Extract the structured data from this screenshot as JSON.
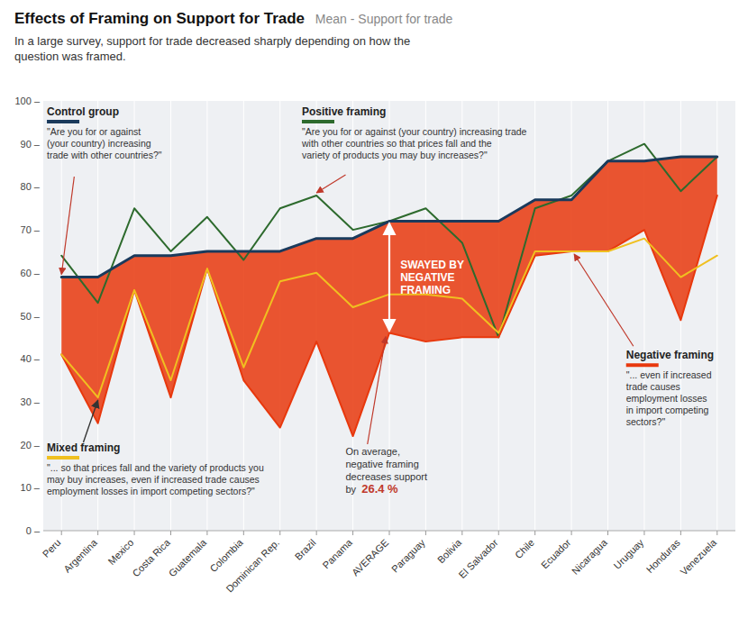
{
  "chart_data": {
    "type": "line",
    "title": "Effects of Framing on Support for Trade",
    "subtitle": "  Mean - Support for trade",
    "annotations": [
      "In a large survey, support for trade decreased sharply depending on how the\nquestion was framed.",
      "\"Are you for or against\n(your country) increasing\ntrade with other countries?\"",
      "\"Are you for or against (your country) increasing trade\nwith other countries so that prices fall and the\nvariety of products you may buy increases?\"",
      "\"... so that prices fall and the variety of products you\nmay buy increases, even if increased trade causes\nemployment losses in import competing sectors?\"",
      "SWAYED BY\nNEGATIVE\nFRAMING",
      "On average,\nnegative framing\ndecreases support\nby ",
      "26.4 %",
      "\"... even if increased\ntrade causes\nemployment losses\nin import competing\nsectors?\""
    ],
    "categories": [
      "Peru",
      "Argentina",
      "Mexico",
      "Costa Rica",
      "Guatemala",
      "Colombia",
      "Dominican Rep.",
      "Brazil",
      "Panama",
      "AVERAGE",
      "Paraguay",
      "Bolivia",
      "El Salvador",
      "Chile",
      "Ecuador",
      "Nicaragua",
      "Uruguay",
      "Honduras",
      "Venezuela"
    ],
    "series": [
      {
        "name": "Control group",
        "color": "#1a3a5c",
        "values": [
          59,
          59,
          64,
          64,
          65,
          65,
          65,
          68,
          68,
          72,
          72,
          72,
          72,
          77,
          77,
          86,
          86,
          87,
          87
        ]
      },
      {
        "name": "Positive framing",
        "color": "#2d6a2d",
        "values": [
          64,
          53,
          75,
          65,
          73,
          63,
          75,
          78,
          70,
          72,
          75,
          67,
          45,
          75,
          78,
          86,
          90,
          79,
          87
        ]
      },
      {
        "name": "Negative framing",
        "color": "#e8380d",
        "values": [
          41,
          25,
          56,
          31,
          61,
          35,
          24,
          44,
          22,
          46,
          44,
          45,
          45,
          64,
          65,
          65,
          70,
          49,
          78
        ]
      },
      {
        "name": "Mixed framing",
        "color": "#f0c020",
        "values": [
          41,
          31,
          56,
          35,
          61,
          38,
          58,
          60,
          52,
          55,
          55,
          54,
          46,
          65,
          65,
          65,
          68,
          59,
          64
        ]
      }
    ],
    "ylim": [
      0,
      100
    ],
    "yticks": [
      {
        "value": 0,
        "label": "0 –"
      },
      {
        "value": 10,
        "label": "10 –"
      },
      {
        "value": 20,
        "label": "20 –"
      },
      {
        "value": 30,
        "label": "30 –"
      },
      {
        "value": 40,
        "label": "40 –"
      },
      {
        "value": 50,
        "label": "50 –"
      },
      {
        "value": 60,
        "label": "60 –"
      },
      {
        "value": 70,
        "label": "70 –"
      },
      {
        "value": 80,
        "label": "80 –"
      },
      {
        "value": 90,
        "label": "90 –"
      },
      {
        "value": 100,
        "label": "100 –"
      }
    ],
    "grid": true
  }
}
